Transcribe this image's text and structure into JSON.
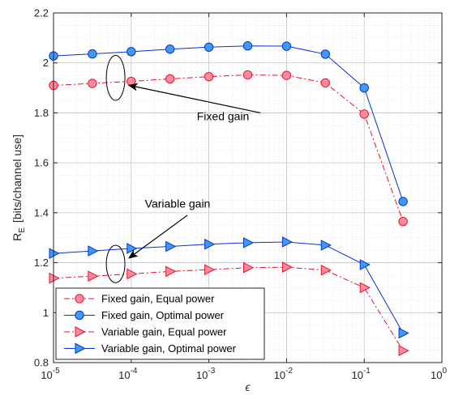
{
  "chart_data": {
    "type": "line",
    "xscale": "log",
    "xlim": [
      1e-05,
      1
    ],
    "ylim": [
      0.8,
      2.2
    ],
    "grid": true,
    "legend_position": "bottom-left",
    "xlabel": "ϵ",
    "ylabel_main": "R",
    "ylabel_sub": "E",
    "ylabel_rest": "[bits/channel use]",
    "xticks": [
      {
        "value": 1e-05,
        "base": "10",
        "exp": "-5"
      },
      {
        "value": 0.0001,
        "base": "10",
        "exp": "-4"
      },
      {
        "value": 0.001,
        "base": "10",
        "exp": "-3"
      },
      {
        "value": 0.01,
        "base": "10",
        "exp": "-2"
      },
      {
        "value": 0.1,
        "base": "10",
        "exp": "-1"
      },
      {
        "value": 1,
        "base": "10",
        "exp": "0"
      }
    ],
    "yticks": [
      {
        "value": 0.8,
        "label": "0.8"
      },
      {
        "value": 1.0,
        "label": "1"
      },
      {
        "value": 1.2,
        "label": "1.2"
      },
      {
        "value": 1.4,
        "label": "1.4"
      },
      {
        "value": 1.6,
        "label": "1.6"
      },
      {
        "value": 1.8,
        "label": "1.8"
      },
      {
        "value": 2.0,
        "label": "2"
      },
      {
        "value": 2.2,
        "label": "2.2"
      }
    ],
    "x": [
      1e-05,
      3.16e-05,
      0.0001,
      0.000316,
      0.001,
      0.00316,
      0.01,
      0.0316,
      0.1,
      0.316
    ],
    "series": [
      {
        "name": "Fixed gain, Equal power",
        "marker": "circle",
        "color": "#e8112d",
        "fill": "#ff8c9e",
        "dash": "dash-dot",
        "values": [
          1.91,
          1.918,
          1.926,
          1.936,
          1.945,
          1.952,
          1.95,
          1.92,
          1.795,
          1.365
        ]
      },
      {
        "name": "Fixed gain, Optimal power",
        "marker": "circle",
        "color": "#0a2fd6",
        "fill": "#3d9bf0",
        "dash": "solid",
        "values": [
          2.028,
          2.036,
          2.045,
          2.055,
          2.063,
          2.068,
          2.067,
          2.035,
          1.9,
          1.445
        ]
      },
      {
        "name": "Variable gain, Equal power",
        "marker": "triangle-right",
        "color": "#e8112d",
        "fill": "#ff8c9e",
        "dash": "dash-dot",
        "values": [
          1.138,
          1.146,
          1.155,
          1.165,
          1.172,
          1.18,
          1.182,
          1.17,
          1.1,
          0.848
        ]
      },
      {
        "name": "Variable gain, Optimal power",
        "marker": "triangle-right",
        "color": "#0a2fd6",
        "fill": "#3d9bf0",
        "dash": "solid",
        "values": [
          1.237,
          1.247,
          1.257,
          1.265,
          1.274,
          1.28,
          1.283,
          1.27,
          1.192,
          0.918
        ]
      }
    ],
    "annotations": [
      {
        "text": "Fixed gain",
        "ellipse": {
          "cx": 6.3e-05,
          "cy": 1.94,
          "rx_decades": 0.12,
          "ry": 0.09
        },
        "arrow_from": [
          0.0046,
          1.8
        ],
        "arrow_to": [
          9.5e-05,
          1.91
        ],
        "text_at": [
          0.0007,
          1.77
        ]
      },
      {
        "text": "Variable gain",
        "ellipse": {
          "cx": 6.3e-05,
          "cy": 1.195,
          "rx_decades": 0.12,
          "ry": 0.075
        },
        "arrow_from": [
          0.00053,
          1.39
        ],
        "arrow_to": [
          9.5e-05,
          1.22
        ],
        "text_at": [
          0.00015,
          1.42
        ]
      }
    ]
  }
}
